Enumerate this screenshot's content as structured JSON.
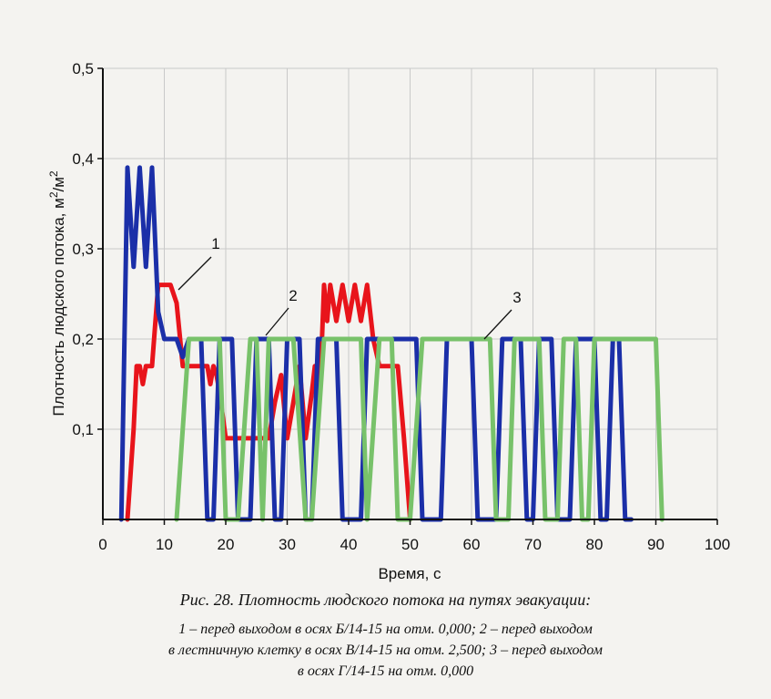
{
  "chart_data": {
    "type": "line",
    "xlabel": "Время, с",
    "ylabel_main": "Плотность людского потока, м",
    "ylabel_unit_sup1": "2",
    "ylabel_unit_mid": "/м",
    "ylabel_unit_sup2": "2",
    "xlim": [
      0,
      100
    ],
    "ylim": [
      0,
      0.5
    ],
    "xticks": [
      0,
      10,
      20,
      30,
      40,
      50,
      60,
      70,
      80,
      90,
      100
    ],
    "xtick_labels": [
      "0",
      "10",
      "20",
      "30",
      "40",
      "50",
      "60",
      "70",
      "80",
      "90",
      "100"
    ],
    "yticks": [
      0.1,
      0.2,
      0.3,
      0.4,
      0.5
    ],
    "ytick_labels": [
      "0,1",
      "0,2",
      "0,3",
      "0,4",
      "0,5"
    ],
    "grid": true,
    "legend": "none",
    "callouts": [
      "1",
      "2",
      "3"
    ],
    "series": [
      {
        "label": "1",
        "color": "#e8141b",
        "x": [
          4,
          5,
          5.5,
          6,
          6.5,
          7,
          8,
          9,
          10,
          11,
          12,
          13,
          14,
          15,
          16,
          17,
          17.5,
          18,
          18.5,
          19,
          20,
          21,
          22,
          27,
          28,
          29,
          30,
          31,
          32,
          33,
          34,
          34.5,
          35,
          35.5,
          36,
          36.5,
          37,
          38,
          39,
          40,
          41,
          42,
          43,
          44,
          45,
          46,
          47,
          48,
          49,
          50
        ],
        "y": [
          0,
          0.1,
          0.17,
          0.17,
          0.15,
          0.17,
          0.17,
          0.26,
          0.26,
          0.26,
          0.24,
          0.17,
          0.17,
          0.17,
          0.17,
          0.17,
          0.15,
          0.17,
          0.16,
          0.14,
          0.09,
          0.09,
          0.09,
          0.09,
          0.13,
          0.16,
          0.09,
          0.13,
          0.17,
          0.09,
          0.14,
          0.17,
          0.13,
          0.17,
          0.26,
          0.22,
          0.26,
          0.22,
          0.26,
          0.22,
          0.26,
          0.22,
          0.26,
          0.2,
          0.17,
          0.17,
          0.17,
          0.17,
          0.09,
          0
        ]
      },
      {
        "label": "2",
        "color": "#1b2fa8",
        "x": [
          3,
          4,
          5,
          6,
          7,
          8,
          9,
          10,
          11,
          12,
          13,
          14,
          15,
          16,
          17,
          18,
          19,
          20,
          21,
          22,
          23,
          24,
          25,
          26,
          27,
          28,
          29,
          30,
          31,
          32,
          33,
          34,
          35,
          36,
          37,
          38,
          39,
          40,
          41,
          42,
          43,
          44,
          45,
          46,
          47,
          48,
          49,
          50,
          51,
          52,
          53,
          54,
          55,
          56,
          57,
          58,
          59,
          60,
          61,
          62,
          63,
          64,
          65,
          66,
          67,
          68,
          69,
          70,
          71,
          72,
          73,
          74,
          75,
          76,
          77,
          78,
          79,
          80,
          81,
          82,
          83,
          84,
          85,
          86
        ],
        "y": [
          0,
          0.39,
          0.28,
          0.39,
          0.28,
          0.39,
          0.23,
          0.2,
          0.2,
          0.2,
          0.18,
          0.2,
          0.2,
          0.2,
          0,
          0,
          0.2,
          0.2,
          0.2,
          0,
          0,
          0,
          0.2,
          0.2,
          0.2,
          0,
          0,
          0.2,
          0.2,
          0.2,
          0,
          0,
          0.2,
          0.2,
          0.2,
          0.2,
          0,
          0,
          0,
          0,
          0.2,
          0.2,
          0.2,
          0.2,
          0.2,
          0.2,
          0.2,
          0.2,
          0.2,
          0,
          0,
          0,
          0,
          0.2,
          0.2,
          0.2,
          0.2,
          0.2,
          0,
          0,
          0,
          0,
          0.2,
          0.2,
          0.2,
          0.2,
          0,
          0,
          0.2,
          0.2,
          0.2,
          0,
          0,
          0,
          0.2,
          0.2,
          0.2,
          0.2,
          0,
          0,
          0.2,
          0.2,
          0,
          0
        ]
      },
      {
        "label": "3",
        "color": "#78c26a",
        "x": [
          12,
          14,
          15,
          17,
          19,
          20,
          22,
          24,
          25,
          26,
          27,
          29,
          31,
          33,
          34,
          36,
          37,
          38,
          40,
          42,
          43,
          45,
          47,
          48,
          50,
          52,
          54,
          56,
          58,
          60,
          62,
          63,
          64,
          66,
          67,
          68,
          70,
          71,
          72,
          74,
          75,
          76,
          77,
          78,
          79,
          80,
          82,
          84,
          86,
          88,
          90,
          91
        ],
        "y": [
          0,
          0.2,
          0.2,
          0.2,
          0.2,
          0,
          0,
          0.2,
          0.2,
          0,
          0.2,
          0.2,
          0.2,
          0,
          0,
          0.2,
          0.2,
          0.2,
          0.2,
          0.2,
          0,
          0.2,
          0.2,
          0,
          0,
          0.2,
          0.2,
          0.2,
          0.2,
          0.2,
          0.2,
          0.2,
          0,
          0,
          0.2,
          0.2,
          0.2,
          0.2,
          0,
          0,
          0.2,
          0.2,
          0.2,
          0,
          0,
          0.2,
          0.2,
          0.2,
          0.2,
          0.2,
          0.2,
          0
        ]
      }
    ]
  },
  "caption": {
    "title": "Рис. 28. Плотность людского потока на путях эвакуации:",
    "line1": "1 – перед выходом в осях Б/14-15 на отм. 0,000; 2 – перед выходом",
    "line2": "в лестничную клетку в осях В/14-15 на отм. 2,500; 3 – перед выходом",
    "line3": "в осях Г/14-15 на отм. 0,000"
  }
}
